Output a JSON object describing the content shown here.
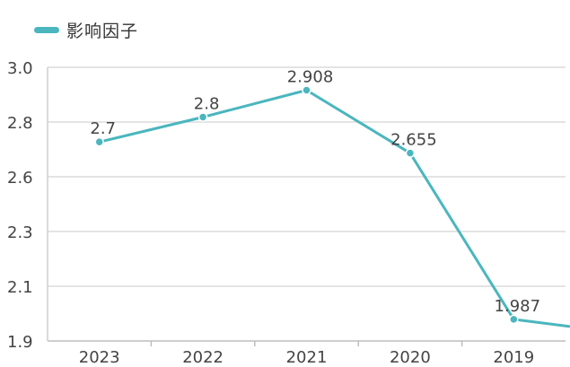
{
  "chart_data": {
    "type": "line",
    "categories": [
      "2023",
      "2022",
      "2021",
      "2020",
      "2019"
    ],
    "series": [
      {
        "name": "影响因子",
        "values": [
          2.7,
          2.8,
          2.908,
          2.655,
          1.987
        ]
      }
    ],
    "data_labels": [
      "2.7",
      "2.8",
      "2.908",
      "2.655",
      "1.987"
    ],
    "yticks": [
      "3.0",
      "2.8",
      "2.6",
      "2.3",
      "2.1",
      "1.9"
    ],
    "ylim": [
      1.9,
      3.0
    ],
    "legend": "top-left",
    "grid": true,
    "line_color": "#4ab6be"
  }
}
